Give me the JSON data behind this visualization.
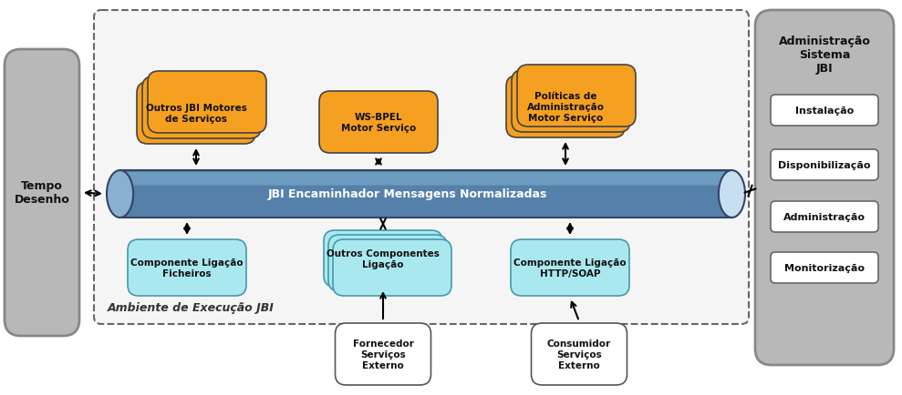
{
  "fig_width": 9.89,
  "fig_height": 4.35,
  "dpi": 100,
  "bg_color": "#ffffff",
  "gray_color": "#b8b8b8",
  "gray_edge": "#888888",
  "orange_color": "#f5a020",
  "orange_edge": "#444444",
  "cyan_color": "#aae8f0",
  "cyan_edge": "#449aaa",
  "pipe_body": "#5580aa",
  "pipe_left": "#8ab0d0",
  "pipe_right": "#c8dff0",
  "pipe_highlight": "#7aa8cc",
  "white_color": "#ffffff",
  "dashed_bg": "#f5f5f5",
  "dashed_edge": "#666666",
  "text_dark": "#111111",
  "text_white": "#ffffff",
  "tempo_label": "Tempo\nDesenho",
  "admin_title": "Administração\nSistema\nJBI",
  "admin_items": [
    "Instalação",
    "Disponibilização",
    "Administração",
    "Monitorização"
  ],
  "pipe_label": "JBI Encaminhador Mensagens Normalizadas",
  "engine_labels": [
    "Outros JBI Motores\nde Serviços",
    "WS-BPEL\nMotor Serviço",
    "Políticas de\nAdministração\nMotor Serviço"
  ],
  "engine_stack": [
    3,
    1,
    3
  ],
  "binding_labels": [
    "Componente Ligação\nFicheiros",
    "Outros Componentes\nLigação",
    "Componente Ligação\nHTTP/SOAP"
  ],
  "binding_stack": [
    1,
    3,
    1
  ],
  "external_labels": [
    "Fornecedor\nServiços\nExterno",
    "Consumidor\nServiços\nExterno"
  ],
  "jbi_env_label": "Ambiente de Execução JBI"
}
